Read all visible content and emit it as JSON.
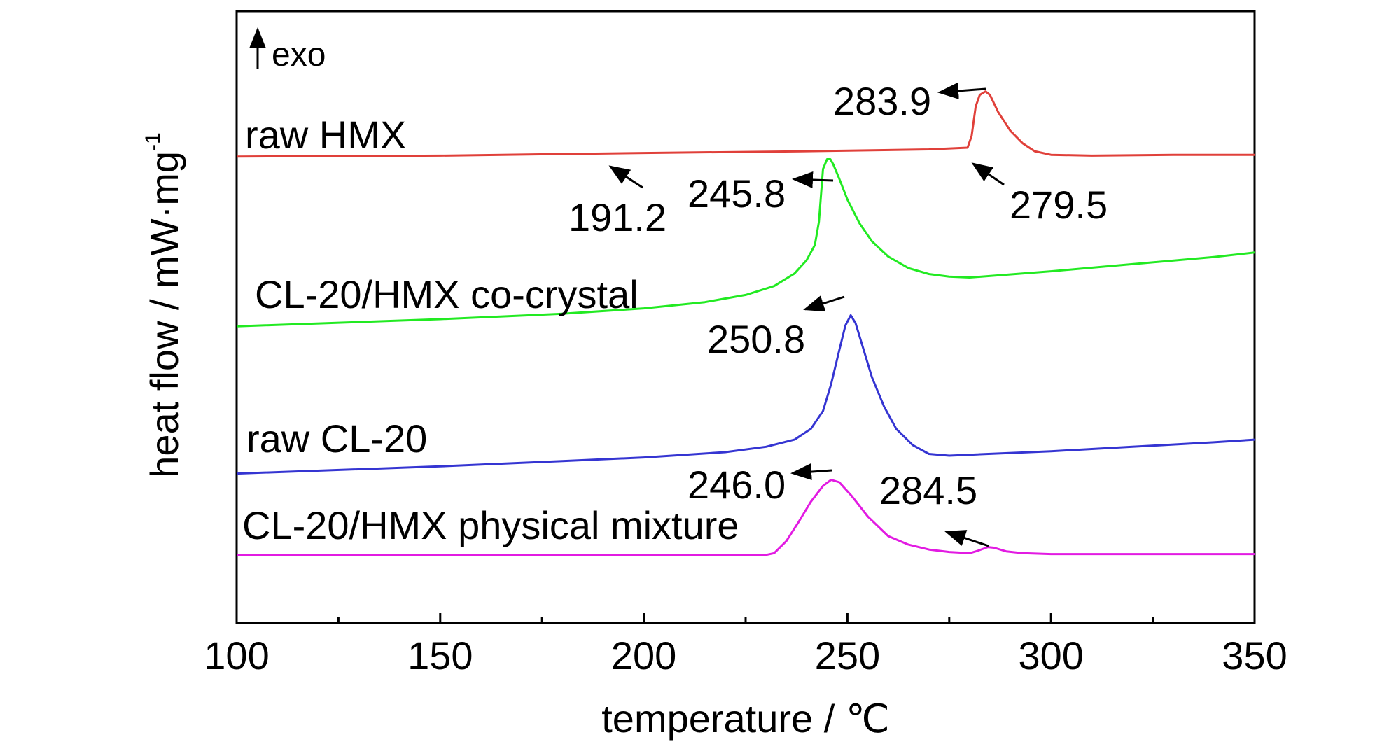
{
  "chart_data": {
    "type": "line",
    "title": "",
    "xlabel": "temperature / ℃",
    "ylabel": "heat flow / mW·mg",
    "ylabel_sup": "-1",
    "exo_label": "exo",
    "xlim": [
      100,
      350
    ],
    "ylim": [
      0,
      1
    ],
    "x_ticks": [
      100,
      150,
      200,
      250,
      300,
      350
    ],
    "x_minor_ticks": [
      125,
      175,
      225,
      275,
      325
    ],
    "y_ticks_labelled": false,
    "grid": false,
    "legend": "none",
    "series": [
      {
        "name": "raw HMX",
        "color": "#e0403a",
        "points": [
          [
            100,
            0.7623
          ],
          [
            150,
            0.7638
          ],
          [
            200,
            0.7682
          ],
          [
            240,
            0.7711
          ],
          [
            270,
            0.774
          ],
          [
            279.5,
            0.7769
          ],
          [
            280.5,
            0.7959
          ],
          [
            281.5,
            0.844
          ],
          [
            282.5,
            0.863
          ],
          [
            283.9,
            0.8689
          ],
          [
            285,
            0.863
          ],
          [
            287,
            0.8353
          ],
          [
            290,
            0.8047
          ],
          [
            293,
            0.7842
          ],
          [
            296,
            0.7711
          ],
          [
            300,
            0.7652
          ],
          [
            310,
            0.7638
          ],
          [
            330,
            0.7652
          ],
          [
            350,
            0.7652
          ]
        ]
      },
      {
        "name": "CL-20/HMX co-crystal",
        "color": "#22ea22",
        "points": [
          [
            100,
            0.4849
          ],
          [
            150,
            0.4966
          ],
          [
            180,
            0.5054
          ],
          [
            200,
            0.5142
          ],
          [
            215,
            0.5244
          ],
          [
            225,
            0.5361
          ],
          [
            232,
            0.5507
          ],
          [
            237,
            0.5712
          ],
          [
            240,
            0.5931
          ],
          [
            242,
            0.618
          ],
          [
            243,
            0.656
          ],
          [
            244,
            0.742
          ],
          [
            245,
            0.758
          ],
          [
            245.8,
            0.758
          ],
          [
            246.5,
            0.75
          ],
          [
            248,
            0.726
          ],
          [
            250,
            0.692
          ],
          [
            253,
            0.653
          ],
          [
            256,
            0.624
          ],
          [
            260,
            0.599
          ],
          [
            265,
            0.58
          ],
          [
            270,
            0.5704
          ],
          [
            275,
            0.5661
          ],
          [
            280,
            0.5646
          ],
          [
            300,
            0.5748
          ],
          [
            320,
            0.5865
          ],
          [
            340,
            0.5982
          ],
          [
            350,
            0.6055
          ]
        ]
      },
      {
        "name": "raw CL-20",
        "color": "#3535d2",
        "points": [
          [
            100,
            0.2442
          ],
          [
            150,
            0.2559
          ],
          [
            180,
            0.2646
          ],
          [
            200,
            0.2705
          ],
          [
            220,
            0.2792
          ],
          [
            230,
            0.288
          ],
          [
            237,
            0.2997
          ],
          [
            241,
            0.3172
          ],
          [
            244,
            0.3465
          ],
          [
            246,
            0.3904
          ],
          [
            248,
            0.446
          ],
          [
            249.5,
            0.4863
          ],
          [
            250.8,
            0.503
          ],
          [
            252,
            0.49
          ],
          [
            254,
            0.446
          ],
          [
            256,
            0.402
          ],
          [
            259,
            0.3538
          ],
          [
            262,
            0.3172
          ],
          [
            266,
            0.2909
          ],
          [
            270,
            0.2763
          ],
          [
            275,
            0.2734
          ],
          [
            280,
            0.2749
          ],
          [
            300,
            0.2807
          ],
          [
            320,
            0.288
          ],
          [
            340,
            0.2953
          ],
          [
            350,
            0.2997
          ]
        ]
      },
      {
        "name": "CL-20/HMX physical mixture",
        "color": "#e21be2",
        "points": [
          [
            100,
            0.1112
          ],
          [
            200,
            0.1112
          ],
          [
            230,
            0.1112
          ],
          [
            232,
            0.1141
          ],
          [
            235,
            0.134
          ],
          [
            238,
            0.165
          ],
          [
            241,
            0.198
          ],
          [
            244,
            0.224
          ],
          [
            246,
            0.234
          ],
          [
            248,
            0.23
          ],
          [
            251,
            0.208
          ],
          [
            255,
            0.174
          ],
          [
            260,
            0.142
          ],
          [
            265,
            0.128
          ],
          [
            270,
            0.12
          ],
          [
            275,
            0.116
          ],
          [
            280,
            0.1141
          ],
          [
            282,
            0.118
          ],
          [
            284.5,
            0.124
          ],
          [
            286,
            0.123
          ],
          [
            289,
            0.117
          ],
          [
            293,
            0.1141
          ],
          [
            300,
            0.1126
          ],
          [
            350,
            0.1126
          ]
        ]
      }
    ],
    "annotations": [
      {
        "text": "283.9",
        "x": 283.9,
        "series": "raw HMX"
      },
      {
        "text": "191.2",
        "x": 191.2,
        "series": "raw HMX"
      },
      {
        "text": "279.5",
        "x": 279.5,
        "series": "raw HMX"
      },
      {
        "text": "245.8",
        "x": 245.8,
        "series": "CL-20/HMX co-crystal"
      },
      {
        "text": "250.8",
        "x": 250.8,
        "series": "raw CL-20"
      },
      {
        "text": "246.0",
        "x": 246.0,
        "series": "CL-20/HMX physical mixture"
      },
      {
        "text": "284.5",
        "x": 284.5,
        "series": "CL-20/HMX physical mixture"
      }
    ]
  }
}
